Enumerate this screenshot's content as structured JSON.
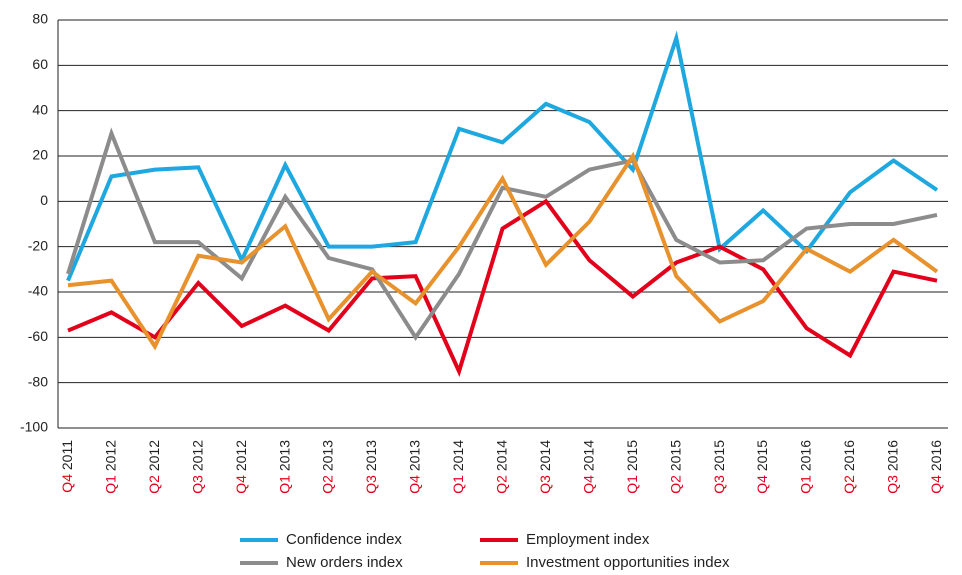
{
  "chart_data": {
    "type": "line",
    "categories": [
      "Q4 2011",
      "Q1 2012",
      "Q2 2012",
      "Q3 2012",
      "Q4 2012",
      "Q1 2013",
      "Q2 2013",
      "Q3 2013",
      "Q4 2013",
      "Q1 2014",
      "Q2 2014",
      "Q3 2014",
      "Q4 2014",
      "Q1 2015",
      "Q2 2015",
      "Q3 2015",
      "Q4 2015",
      "Q1 2016",
      "Q2 2016",
      "Q3 2016",
      "Q4 2016"
    ],
    "series": [
      {
        "name": "Confidence index",
        "color": "#1fa8e0",
        "values": [
          -35,
          11,
          14,
          15,
          -26,
          16,
          -20,
          -20,
          -18,
          32,
          26,
          43,
          35,
          14,
          72,
          -21,
          -4,
          -22,
          4,
          18,
          5
        ]
      },
      {
        "name": "Employment index",
        "color": "#e2001a",
        "values": [
          -57,
          -49,
          -60,
          -36,
          -55,
          -46,
          -57,
          -34,
          -33,
          -75,
          -12,
          0,
          -26,
          -42,
          -27,
          -20,
          -30,
          -56,
          -68,
          -31,
          -35
        ]
      },
      {
        "name": "New orders index",
        "color": "#8c8c8c",
        "values": [
          -32,
          30,
          -18,
          -18,
          -34,
          2,
          -25,
          -30,
          -60,
          -32,
          6,
          2,
          14,
          18,
          -17,
          -27,
          -26,
          -12,
          -10,
          -10,
          -6
        ]
      },
      {
        "name": "Investment opportunities index",
        "color": "#e8922e",
        "values": [
          -37,
          -35,
          -64,
          -24,
          -27,
          -11,
          -52,
          -31,
          -45,
          -20,
          10,
          -28,
          -9,
          20,
          -33,
          -53,
          -44,
          -21,
          -31,
          -17,
          -31
        ]
      }
    ],
    "ylim": [
      -100,
      80
    ],
    "yticks": [
      -100,
      -80,
      -60,
      -40,
      -20,
      0,
      20,
      40,
      60,
      80
    ],
    "grid": true
  }
}
